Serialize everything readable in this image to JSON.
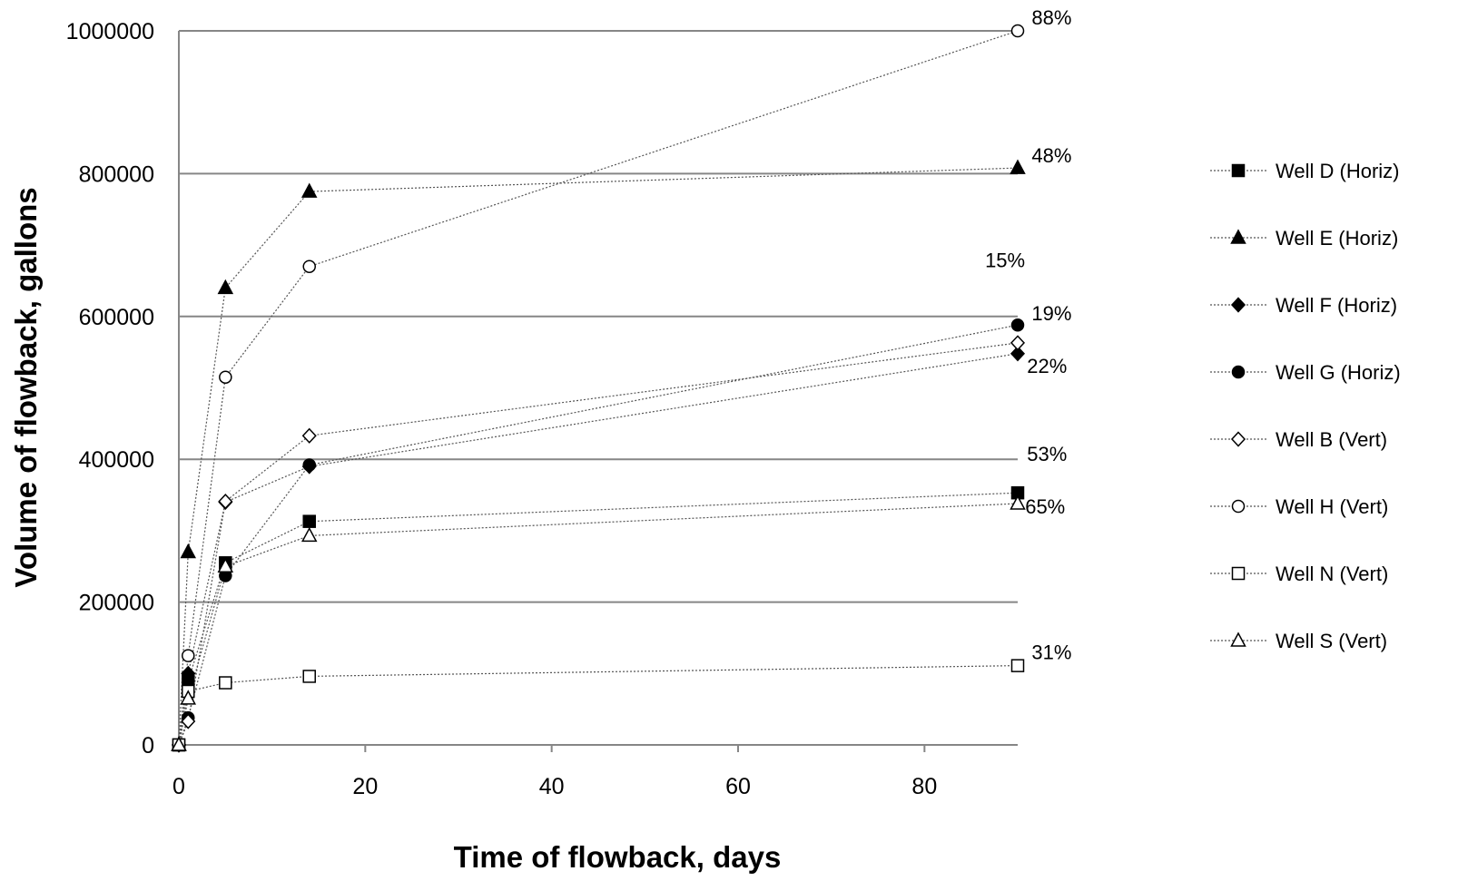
{
  "chart_data": {
    "type": "line",
    "xlabel": "Time of flowback, days",
    "ylabel": "Volume of flowback, gallons",
    "xlim": [
      0,
      90
    ],
    "ylim": [
      0,
      1000000
    ],
    "xticks": [
      "0",
      "20",
      "40",
      "60",
      "80"
    ],
    "yticks": [
      "0",
      "200000",
      "400000",
      "600000",
      "800000",
      "1000000"
    ],
    "grid": "horizontal",
    "legend_position": "right",
    "series": [
      {
        "name": "Well D (Horiz)",
        "marker": "square-filled",
        "x": [
          0,
          1,
          5,
          14,
          90
        ],
        "y": [
          0,
          90000,
          255000,
          313000,
          353000
        ]
      },
      {
        "name": "Well E (Horiz)",
        "marker": "triangle-filled",
        "x": [
          0,
          1,
          5,
          14,
          90
        ],
        "y": [
          0,
          270000,
          640000,
          775000,
          808000
        ]
      },
      {
        "name": "Well F (Horiz)",
        "marker": "diamond-filled",
        "x": [
          0,
          1,
          5,
          14,
          90
        ],
        "y": [
          0,
          100000,
          340000,
          390000,
          548000
        ]
      },
      {
        "name": "Well G (Horiz)",
        "marker": "circle-filled",
        "x": [
          0,
          1,
          5,
          14,
          90
        ],
        "y": [
          0,
          38000,
          237000,
          392000,
          588000
        ]
      },
      {
        "name": "Well B (Vert)",
        "marker": "diamond-open",
        "x": [
          0,
          1,
          5,
          14,
          90
        ],
        "y": [
          0,
          33000,
          341000,
          433000,
          563000
        ]
      },
      {
        "name": "Well H (Vert)",
        "marker": "circle-open",
        "x": [
          0,
          1,
          5,
          14,
          90
        ],
        "y": [
          0,
          125000,
          515000,
          670000,
          1000000
        ]
      },
      {
        "name": "Well N (Vert)",
        "marker": "square-open",
        "x": [
          0,
          1,
          5,
          14,
          90
        ],
        "y": [
          0,
          75000,
          87000,
          96000,
          111000
        ]
      },
      {
        "name": "Well S (Vert)",
        "marker": "triangle-open",
        "x": [
          0,
          1,
          5,
          14,
          90
        ],
        "y": [
          0,
          65000,
          250000,
          293000,
          338000
        ]
      }
    ],
    "annotations": [
      {
        "text": "88%",
        "x": 91.5,
        "y": 1019000
      },
      {
        "text": "48%",
        "x": 91.5,
        "y": 826000
      },
      {
        "text": "15%",
        "x": 86.5,
        "y": 679000
      },
      {
        "text": "19%",
        "x": 91.5,
        "y": 605000
      },
      {
        "text": "22%",
        "x": 91,
        "y": 531000
      },
      {
        "text": "53%",
        "x": 91,
        "y": 408000
      },
      {
        "text": "65%",
        "x": 90.8,
        "y": 334000
      },
      {
        "text": "31%",
        "x": 91.5,
        "y": 130000
      }
    ]
  }
}
